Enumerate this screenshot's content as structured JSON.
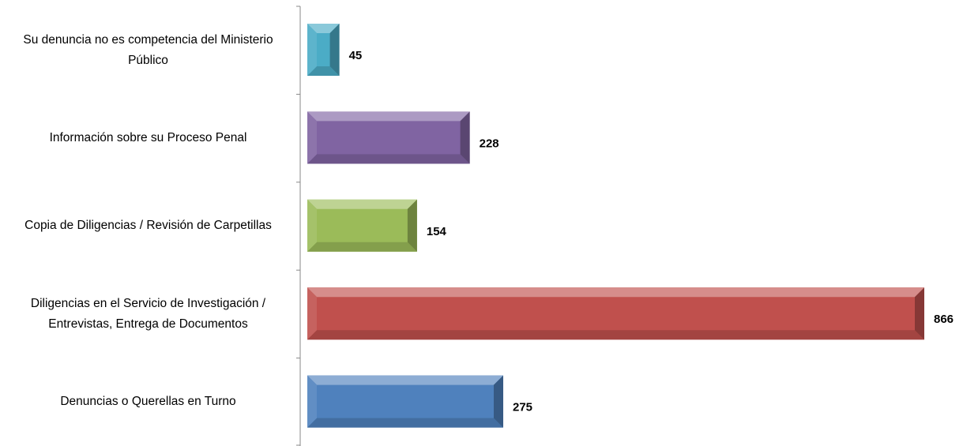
{
  "chart_data": {
    "type": "bar",
    "orientation": "horizontal",
    "categories": [
      "Su denuncia no es competencia del Ministerio Público",
      "Información sobre su Proceso Penal",
      "Copia de Diligencias / Revisión de Carpetillas",
      "Diligencias en el Servicio de Investigación / Entrevistas, Entrega de Documentos",
      "Denuncias o Querellas en Turno"
    ],
    "values": [
      45,
      228,
      154,
      866,
      275
    ],
    "colors": [
      "#4bacc6",
      "#8064a2",
      "#9bbb59",
      "#c0504d",
      "#4f81bd"
    ]
  }
}
